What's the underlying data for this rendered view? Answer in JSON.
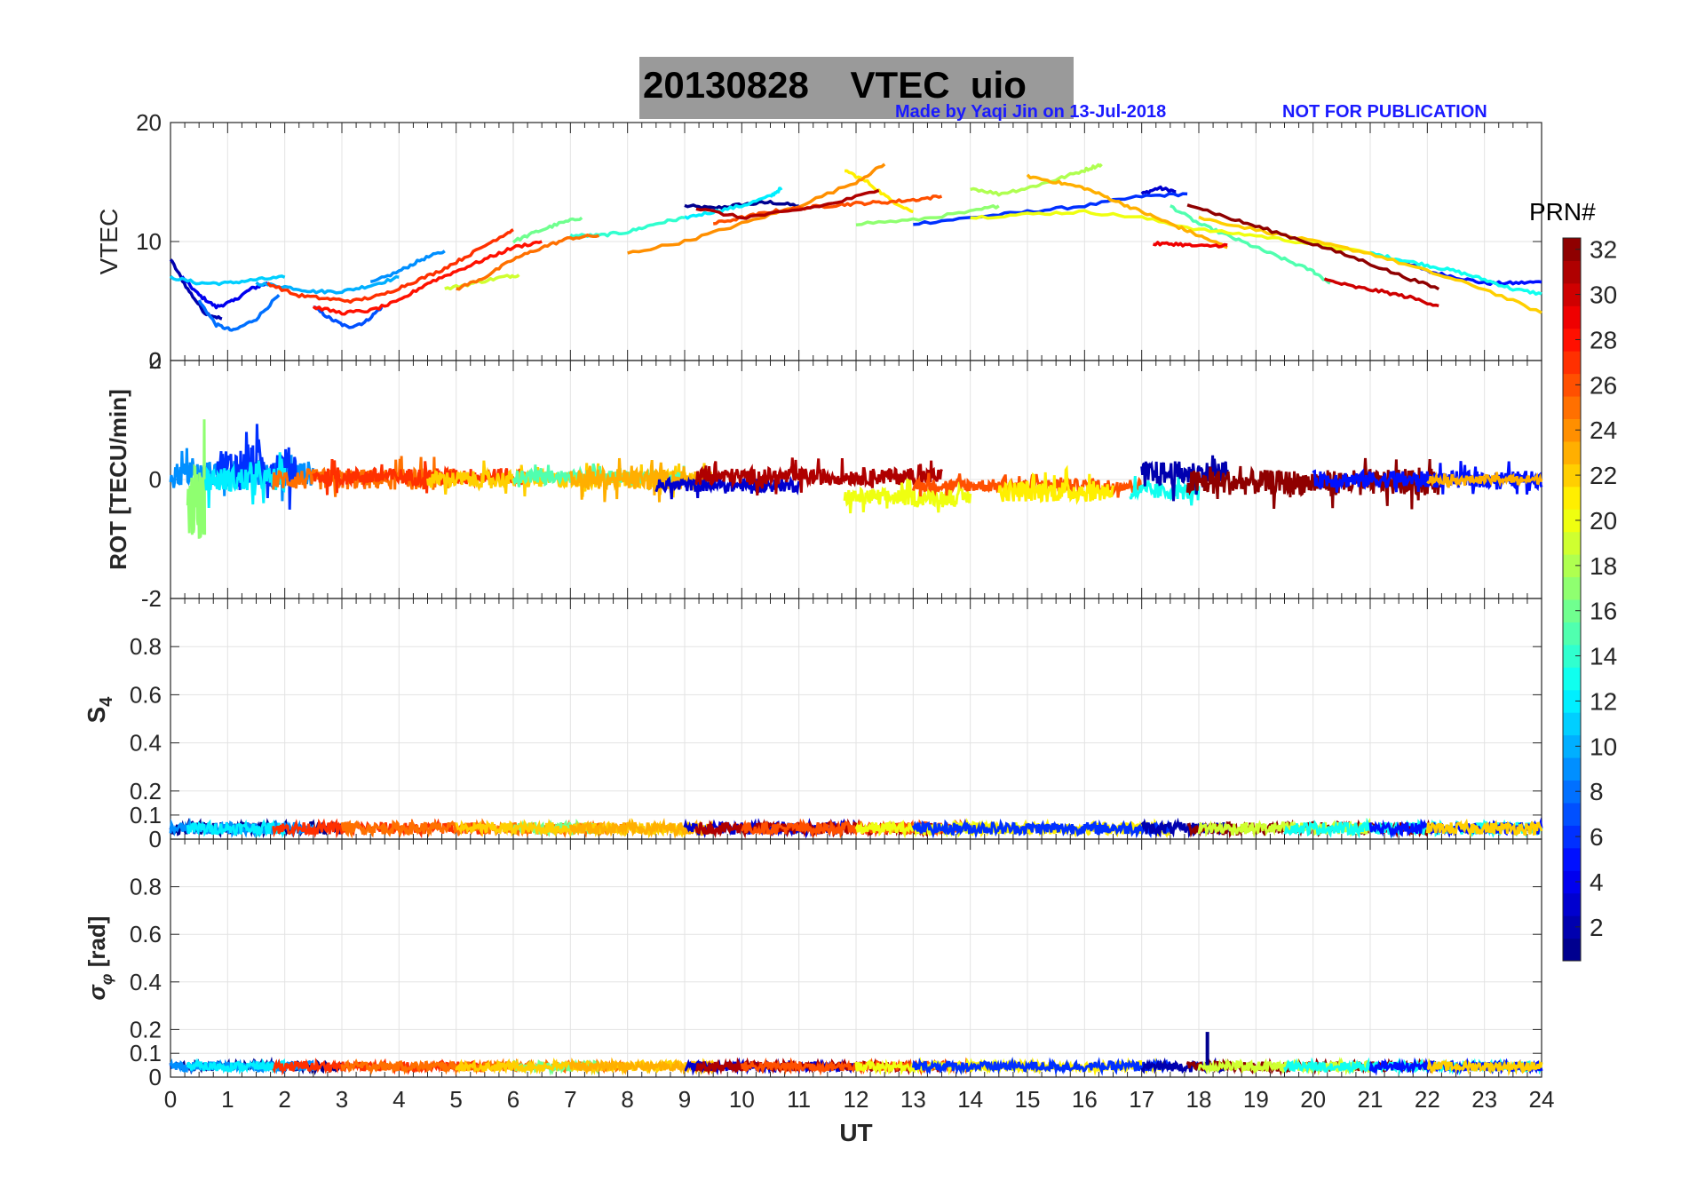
{
  "header": {
    "title": "20130828    VTEC  uio",
    "credit": "Made by Yaqi Jin on 13-Jul-2018",
    "notice": "NOT FOR PUBLICATION"
  },
  "colorbar": {
    "label": "PRN#",
    "ticks": [
      "2",
      "4",
      "6",
      "8",
      "10",
      "12",
      "14",
      "16",
      "18",
      "20",
      "22",
      "24",
      "26",
      "28",
      "30",
      "32"
    ],
    "range": [
      1,
      32
    ],
    "colormap": "jet"
  },
  "chart_data": [
    {
      "type": "line",
      "name": "vtec-panel",
      "ylabel": "VTEC",
      "ylim": [
        0,
        20
      ],
      "yticks": [
        "0",
        "10",
        "20"
      ],
      "xlim": [
        0,
        24
      ],
      "grid": true,
      "series": [
        {
          "prn": 1,
          "x": [
            9.0,
            9.5,
            10.0,
            10.5,
            11.0
          ],
          "y": [
            13.0,
            12.8,
            13.1,
            13.3,
            13.0
          ]
        },
        {
          "prn": 2,
          "x": [
            0.0,
            0.3,
            0.6,
            0.9
          ],
          "y": [
            8.5,
            6.0,
            4.0,
            3.5
          ]
        },
        {
          "prn": 3,
          "x": [
            17.0,
            17.3,
            17.6
          ],
          "y": [
            14.0,
            14.5,
            14.2
          ]
        },
        {
          "prn": 4,
          "x": [
            0.2,
            0.5,
            0.8,
            1.1,
            1.4,
            1.7
          ],
          "y": [
            7.0,
            5.5,
            4.5,
            5.0,
            6.0,
            6.5
          ]
        },
        {
          "prn": 5,
          "x": [
            21.5,
            22.0,
            22.5,
            23.0,
            23.5,
            24.0
          ],
          "y": [
            8.5,
            7.5,
            7.0,
            6.5,
            6.5,
            6.6
          ]
        },
        {
          "prn": 6,
          "x": [
            13.0,
            14.0,
            15.0,
            16.0,
            17.0,
            17.8
          ],
          "y": [
            11.5,
            12.0,
            12.5,
            13.0,
            13.8,
            14.0
          ]
        },
        {
          "prn": 7,
          "x": [
            2.5,
            2.8,
            3.1,
            3.4,
            3.7
          ],
          "y": [
            4.5,
            3.5,
            2.8,
            3.2,
            4.5
          ]
        },
        {
          "prn": 8,
          "x": [
            0.5,
            0.8,
            1.1,
            1.5,
            1.9
          ],
          "y": [
            5.0,
            3.0,
            2.5,
            3.5,
            5.5
          ]
        },
        {
          "prn": 9,
          "x": [
            3.5,
            4.0,
            4.4,
            4.8
          ],
          "y": [
            6.5,
            7.5,
            8.5,
            9.2
          ]
        },
        {
          "prn": 10,
          "x": [
            1.5,
            2.0,
            2.5,
            3.0,
            3.5,
            4.0
          ],
          "y": [
            6.5,
            6.2,
            5.8,
            5.8,
            6.3,
            7.0
          ]
        },
        {
          "prn": 11,
          "x": [
            0.0,
            0.5,
            1.0,
            1.5,
            2.0
          ],
          "y": [
            7.0,
            6.5,
            6.5,
            6.8,
            7.0
          ]
        },
        {
          "prn": 12,
          "x": [
            9.0,
            9.5,
            10.0,
            10.5,
            10.7
          ],
          "y": [
            12.0,
            12.5,
            13.0,
            13.8,
            14.5
          ]
        },
        {
          "prn": 13,
          "x": [
            21.0,
            21.5,
            22.0,
            22.5,
            23.0,
            23.5,
            24.0
          ],
          "y": [
            9.0,
            8.5,
            8.0,
            7.5,
            6.8,
            6.0,
            5.6
          ]
        },
        {
          "prn": 14,
          "x": [
            7.0,
            7.5,
            8.0,
            8.5,
            9.0
          ],
          "y": [
            10.5,
            10.5,
            10.8,
            11.5,
            12.0
          ]
        },
        {
          "prn": 15,
          "x": [
            17.5,
            18.0,
            18.5,
            19.0,
            19.5,
            20.0,
            20.3
          ],
          "y": [
            13.0,
            11.5,
            10.5,
            9.5,
            8.5,
            7.5,
            6.5
          ]
        },
        {
          "prn": 16,
          "x": [
            6.0,
            6.4,
            6.8,
            7.2
          ],
          "y": [
            10.0,
            10.8,
            11.5,
            12.0
          ]
        },
        {
          "prn": 17,
          "x": [
            12.0,
            13.0,
            14.0,
            14.5
          ],
          "y": [
            11.5,
            11.8,
            12.5,
            13.0
          ]
        },
        {
          "prn": 18,
          "x": [
            14.0,
            14.5,
            15.0,
            15.5,
            16.0,
            16.3
          ],
          "y": [
            14.5,
            14.0,
            14.5,
            15.2,
            16.0,
            16.5
          ]
        },
        {
          "prn": 19,
          "x": [
            4.8,
            5.3,
            5.8,
            6.1
          ],
          "y": [
            6.0,
            6.5,
            7.0,
            7.2
          ]
        },
        {
          "prn": 20,
          "x": [
            14.0,
            15.0,
            16.0,
            17.0,
            18.0,
            19.0,
            20.0,
            21.0
          ],
          "y": [
            12.0,
            12.3,
            12.5,
            12.0,
            11.0,
            10.5,
            9.8,
            9.0
          ]
        },
        {
          "prn": 21,
          "x": [
            11.8,
            12.2,
            12.6,
            13.0
          ],
          "y": [
            16.0,
            15.0,
            13.5,
            12.5
          ]
        },
        {
          "prn": 22,
          "x": [
            18.0,
            19.0,
            20.0,
            21.0,
            22.0,
            23.0,
            24.0
          ],
          "y": [
            12.0,
            11.0,
            10.0,
            9.0,
            7.5,
            6.0,
            4.0
          ]
        },
        {
          "prn": 23,
          "x": [
            15.0,
            15.5,
            16.0,
            16.5,
            17.0,
            17.5,
            18.0,
            18.5
          ],
          "y": [
            15.5,
            15.0,
            14.5,
            13.5,
            12.5,
            11.5,
            10.5,
            9.5
          ]
        },
        {
          "prn": 24,
          "x": [
            8.0,
            9.0,
            10.0,
            11.0,
            12.0,
            12.5
          ],
          "y": [
            9.0,
            10.0,
            11.5,
            13.0,
            15.0,
            16.5
          ]
        },
        {
          "prn": 25,
          "x": [
            5.0,
            5.5,
            6.0,
            6.5,
            7.0,
            7.5
          ],
          "y": [
            6.0,
            7.0,
            8.5,
            9.5,
            10.3,
            10.5
          ]
        },
        {
          "prn": 26,
          "x": [
            9.5,
            10.0,
            10.5,
            11.0,
            11.5,
            12.0,
            12.5,
            13.0,
            13.5
          ],
          "y": [
            11.5,
            12.0,
            12.5,
            12.8,
            13.0,
            13.2,
            13.3,
            13.5,
            13.8
          ]
        },
        {
          "prn": 27,
          "x": [
            1.7,
            2.2,
            2.7,
            3.2,
            3.7,
            4.2,
            4.7,
            5.2,
            5.7,
            6.0
          ],
          "y": [
            6.5,
            5.5,
            5.2,
            5.0,
            5.5,
            6.5,
            7.5,
            8.8,
            10.2,
            11.0
          ]
        },
        {
          "prn": 28,
          "x": [
            2.5,
            3.0,
            3.5,
            4.0,
            4.5,
            5.0,
            5.5,
            6.0,
            6.5
          ],
          "y": [
            4.5,
            4.0,
            4.2,
            5.0,
            6.5,
            7.5,
            8.5,
            9.5,
            10.0
          ]
        },
        {
          "prn": 29,
          "x": [
            17.2,
            17.6,
            18.0,
            18.5
          ],
          "y": [
            9.8,
            9.8,
            9.6,
            9.7
          ]
        },
        {
          "prn": 30,
          "x": [
            20.2,
            20.7,
            21.2,
            21.7,
            22.2
          ],
          "y": [
            6.8,
            6.2,
            5.8,
            5.3,
            4.6
          ]
        },
        {
          "prn": 31,
          "x": [
            9.2,
            10.0,
            10.8,
            11.6,
            12.4
          ],
          "y": [
            12.8,
            12.0,
            12.5,
            13.2,
            14.3
          ]
        },
        {
          "prn": 32,
          "x": [
            17.8,
            18.5,
            19.2,
            20.0,
            20.8,
            21.5,
            22.2
          ],
          "y": [
            13.2,
            12.0,
            11.0,
            9.8,
            8.5,
            7.2,
            6.0
          ]
        }
      ]
    },
    {
      "type": "line",
      "name": "rot-panel",
      "ylabel": "ROT [TECU/min]",
      "ylim": [
        -2,
        2
      ],
      "yticks": [
        "-2",
        "0",
        "2"
      ],
      "xlim": [
        0,
        24
      ],
      "grid": true,
      "description_of_values": "noisy traces centred near 0, mostly within -0.5 to 0.5",
      "segments": [
        {
          "prn": 9,
          "x": [
            0.0,
            2.5
          ],
          "center": 0.1,
          "amp": 0.3
        },
        {
          "prn": 17,
          "x": [
            0.3,
            0.6
          ],
          "center": -0.4,
          "amp": 0.9
        },
        {
          "prn": 6,
          "x": [
            0.8,
            2.2
          ],
          "center": 0.2,
          "amp": 0.5
        },
        {
          "prn": 12,
          "x": [
            0.6,
            2.0
          ],
          "center": 0.0,
          "amp": 0.3
        },
        {
          "prn": 25,
          "x": [
            1.8,
            5.0
          ],
          "center": 0.0,
          "amp": 0.25
        },
        {
          "prn": 27,
          "x": [
            2.5,
            6.2
          ],
          "center": 0.05,
          "amp": 0.2
        },
        {
          "prn": 22,
          "x": [
            4.5,
            9.5
          ],
          "center": 0.0,
          "amp": 0.2
        },
        {
          "prn": 15,
          "x": [
            6.0,
            9.0
          ],
          "center": 0.05,
          "amp": 0.15
        },
        {
          "prn": 23,
          "x": [
            7.0,
            9.5
          ],
          "center": 0.0,
          "amp": 0.25
        },
        {
          "prn": 3,
          "x": [
            8.5,
            11.0
          ],
          "center": -0.1,
          "amp": 0.15
        },
        {
          "prn": 31,
          "x": [
            9.2,
            13.5
          ],
          "center": 0.05,
          "amp": 0.2
        },
        {
          "prn": 20,
          "x": [
            11.8,
            14.0
          ],
          "center": -0.3,
          "amp": 0.2
        },
        {
          "prn": 26,
          "x": [
            13.0,
            17.0
          ],
          "center": -0.1,
          "amp": 0.15
        },
        {
          "prn": 21,
          "x": [
            14.5,
            16.5
          ],
          "center": -0.2,
          "amp": 0.25
        },
        {
          "prn": 13,
          "x": [
            16.8,
            18.0
          ],
          "center": -0.2,
          "amp": 0.2
        },
        {
          "prn": 2,
          "x": [
            17.0,
            18.5
          ],
          "center": 0.1,
          "amp": 0.3
        },
        {
          "prn": 32,
          "x": [
            17.8,
            22.2
          ],
          "center": -0.05,
          "amp": 0.3
        },
        {
          "prn": 5,
          "x": [
            20.0,
            24.0
          ],
          "center": 0.0,
          "amp": 0.2
        },
        {
          "prn": 23,
          "x": [
            22.0,
            24.0
          ],
          "center": 0.0,
          "amp": 0.1
        }
      ]
    },
    {
      "type": "line",
      "name": "s4-panel",
      "ylabel": "S4",
      "ylim": [
        0,
        1
      ],
      "yticks": [
        "0",
        "0.1",
        "0.2",
        "0.4",
        "0.6",
        "0.8"
      ],
      "xlim": [
        0,
        24
      ],
      "grid": true,
      "description_of_values": "all PRNs between about 0.02 and 0.1 throughout the day",
      "typical_range": [
        0.02,
        0.1
      ]
    },
    {
      "type": "line",
      "name": "sigma-phi-panel",
      "ylabel": "σ_φ [rad]",
      "xlabel": "UT",
      "ylim": [
        0,
        1
      ],
      "yticks": [
        "0",
        "0.1",
        "0.2",
        "0.4",
        "0.6",
        "0.8"
      ],
      "xlim": [
        0,
        24
      ],
      "xticks": [
        "0",
        "1",
        "2",
        "3",
        "4",
        "5",
        "6",
        "7",
        "8",
        "9",
        "10",
        "11",
        "12",
        "13",
        "14",
        "15",
        "16",
        "17",
        "18",
        "19",
        "20",
        "21",
        "22",
        "23",
        "24"
      ],
      "grid": true,
      "typical_range": [
        0.03,
        0.08
      ],
      "spike": {
        "prn": 1,
        "x": 18.15,
        "y": 0.19
      }
    }
  ]
}
